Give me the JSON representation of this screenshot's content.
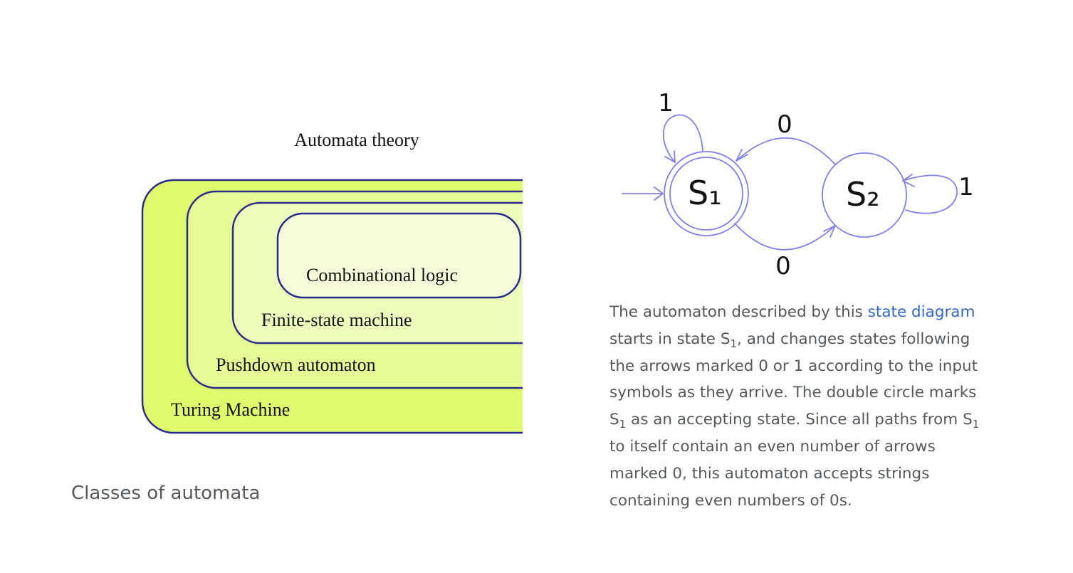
{
  "left_figure": {
    "title": "Automata theory",
    "classes": [
      "Turing Machine",
      "Pushdown automaton",
      "Finite-state machine",
      "Combinational logic"
    ],
    "caption": "Classes of automata",
    "colors": {
      "border": "#2b2b8c",
      "turing_fill": "#e0fc6d",
      "pushdown_fill": "#e6fb95",
      "fsm_fill": "#edfbbb",
      "combinational_fill": "#f4fcd9"
    }
  },
  "right_figure": {
    "states": {
      "s1": {
        "letter": "S",
        "index": "₁",
        "accepting": true,
        "initial": true
      },
      "s2": {
        "letter": "S",
        "index": "₂",
        "accepting": false,
        "initial": false
      }
    },
    "transitions": [
      {
        "from": "S1",
        "to": "S1",
        "label": "1"
      },
      {
        "from": "S1",
        "to": "S2",
        "label": "0"
      },
      {
        "from": "S2",
        "to": "S1",
        "label": "0"
      },
      {
        "from": "S2",
        "to": "S2",
        "label": "1"
      }
    ],
    "colors": {
      "edge": "#8080e8"
    },
    "caption": {
      "p1": "The automaton described by this ",
      "link": "state diagram",
      "p2": " starts in state S",
      "sub1": "1",
      "p3": ", and changes states following the arrows marked 0 or 1 according to the input symbols as they arrive. The double circle marks S",
      "sub2": "1",
      "p4": " as an accepting state. Since all paths from S",
      "sub3": "1",
      "p5": " to itself contain an even number of arrows marked 0, this automaton accepts strings containing even numbers of 0s."
    }
  }
}
